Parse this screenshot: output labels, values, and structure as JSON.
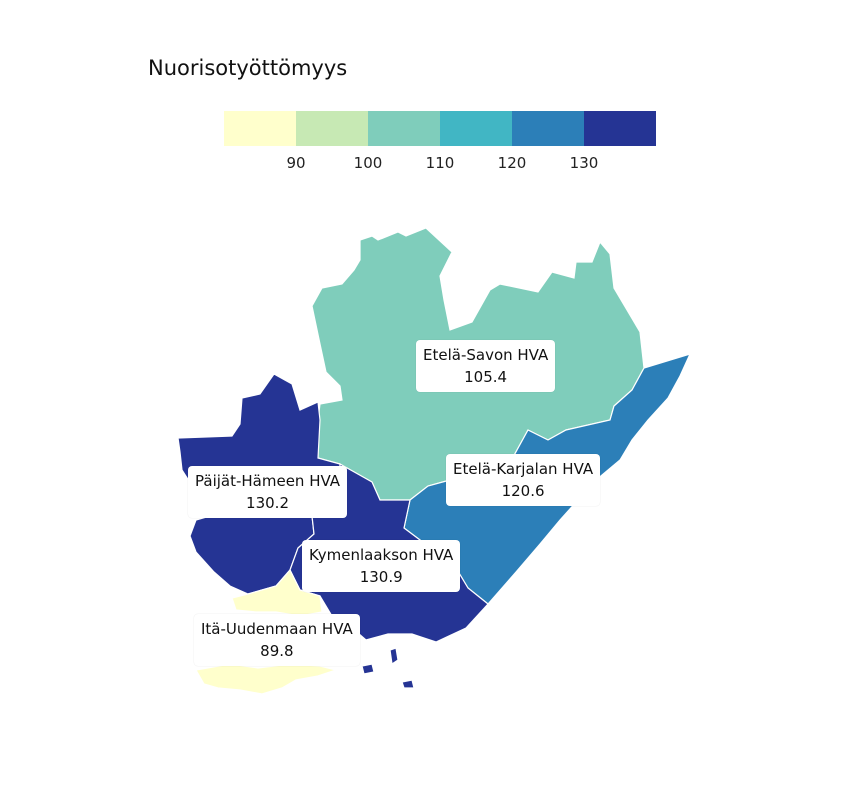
{
  "title": "Nuorisotyöttömyys",
  "legend": {
    "colors": [
      "#ffffcc",
      "#c7e9b4",
      "#7fcdbb",
      "#41b6c4",
      "#2c7fb8",
      "#253494"
    ],
    "ticks": [
      "90",
      "100",
      "110",
      "120",
      "130"
    ]
  },
  "regions": [
    {
      "name": "Etelä-Savon HVA",
      "value": "105.4",
      "color": "#7fcdbb"
    },
    {
      "name": "Etelä-Karjalan HVA",
      "value": "120.6",
      "color": "#2c7fb8"
    },
    {
      "name": "Päijät-Hämeen HVA",
      "value": "130.2",
      "color": "#253494"
    },
    {
      "name": "Kymenlaakson HVA",
      "value": "130.9",
      "color": "#253494"
    },
    {
      "name": "Itä-Uudenmaan HVA",
      "value": "89.8",
      "color": "#ffffcc"
    }
  ]
}
